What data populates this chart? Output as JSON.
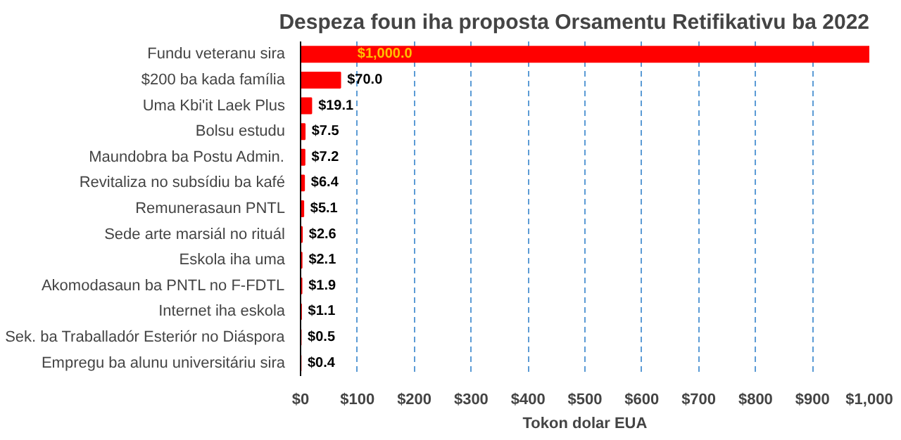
{
  "chart_data": {
    "type": "bar",
    "orientation": "horizontal",
    "title": "Despeza foun iha proposta Orsamentu Retifikativu ba 2022",
    "xlabel": "Tokon dolar EUA",
    "categories": [
      "Fundu veteranu sira",
      "$200 ba kada família",
      "Uma Kbi'it Laek Plus",
      "Bolsu estudu",
      "Maundobra ba Postu Admin.",
      "Revitaliza no subsídiu ba kafé",
      "Remunerasaun PNTL",
      "Sede arte marsiál no rituál",
      "Eskola iha uma",
      "Akomodasaun ba PNTL no F-FDTL",
      "Internet iha eskola",
      "Sek. ba Traballadór Esteriór no Diáspora",
      "Empregu ba alunu universitáriu sira"
    ],
    "values": [
      1000.0,
      70.0,
      19.1,
      7.5,
      7.2,
      6.4,
      5.1,
      2.6,
      2.1,
      1.9,
      1.1,
      0.5,
      0.4
    ],
    "value_labels": [
      "$1,000.0",
      "$70.0",
      "$19.1",
      "$7.5",
      "$7.2",
      "$6.4",
      "$5.1",
      "$2.6",
      "$2.1",
      "$1.9",
      "$1.1",
      "$0.5",
      "$0.4"
    ],
    "color": "#ff0000",
    "xlim": [
      0,
      1000
    ],
    "xticks": [
      {
        "value": 0,
        "label": "$0"
      },
      {
        "value": 100,
        "label": "$100"
      },
      {
        "value": 200,
        "label": "$200"
      },
      {
        "value": 300,
        "label": "$300"
      },
      {
        "value": 400,
        "label": "$400"
      },
      {
        "value": 500,
        "label": "$500"
      },
      {
        "value": 600,
        "label": "$600"
      },
      {
        "value": 700,
        "label": "$700"
      },
      {
        "value": 800,
        "label": "$800"
      },
      {
        "value": 900,
        "label": "$900"
      },
      {
        "value": 1000,
        "label": "$1,000"
      }
    ],
    "grid": "x"
  }
}
